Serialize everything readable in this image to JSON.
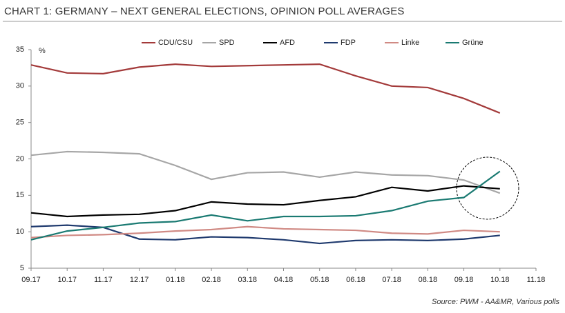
{
  "chart_data": {
    "type": "line",
    "title": "CHART 1: GERMANY – NEXT GENERAL ELECTIONS, OPINION POLL AVERAGES",
    "y_label": "%",
    "source": "Source: PWM - AA&MR, Various polls",
    "categories": [
      "09.17",
      "10.17",
      "11.17",
      "12.17",
      "01.18",
      "02.18",
      "03.18",
      "04.18",
      "05.18",
      "06.18",
      "07.18",
      "08.18",
      "09.18",
      "10.18",
      "11.18"
    ],
    "series": [
      {
        "name": "CDU/CSU",
        "color": "#a33a3a",
        "values": [
          32.9,
          31.8,
          31.7,
          32.6,
          33.0,
          32.7,
          32.8,
          32.9,
          33.0,
          31.4,
          30.0,
          29.8,
          28.3,
          26.3,
          null
        ]
      },
      {
        "name": "SPD",
        "color": "#a6a6a6",
        "values": [
          20.5,
          21.0,
          20.9,
          20.7,
          19.1,
          17.2,
          18.1,
          18.2,
          17.5,
          18.2,
          17.8,
          17.7,
          17.1,
          15.3,
          null
        ]
      },
      {
        "name": "AFD",
        "color": "#000000",
        "values": [
          12.6,
          12.1,
          12.3,
          12.4,
          12.9,
          14.1,
          13.8,
          13.7,
          14.3,
          14.8,
          16.1,
          15.6,
          16.3,
          15.9,
          null
        ]
      },
      {
        "name": "FDP",
        "color": "#1f3a6e",
        "values": [
          10.7,
          10.9,
          10.6,
          9.0,
          8.9,
          9.3,
          9.2,
          8.9,
          8.4,
          8.8,
          8.9,
          8.8,
          9.0,
          9.5,
          null
        ]
      },
      {
        "name": "Linke",
        "color": "#d08a84",
        "values": [
          9.2,
          9.5,
          9.6,
          9.8,
          10.1,
          10.3,
          10.7,
          10.4,
          10.3,
          10.2,
          9.8,
          9.7,
          10.2,
          10.0,
          null
        ]
      },
      {
        "name": "Grüne",
        "color": "#1a7a72",
        "values": [
          8.9,
          10.1,
          10.6,
          11.2,
          11.4,
          12.3,
          11.5,
          12.1,
          12.1,
          12.2,
          12.9,
          14.2,
          14.7,
          18.3,
          null
        ]
      }
    ],
    "ylim": [
      5,
      35
    ],
    "yticks": [
      5,
      10,
      15,
      20,
      25,
      30,
      35
    ],
    "legend": "top",
    "grid": false
  }
}
